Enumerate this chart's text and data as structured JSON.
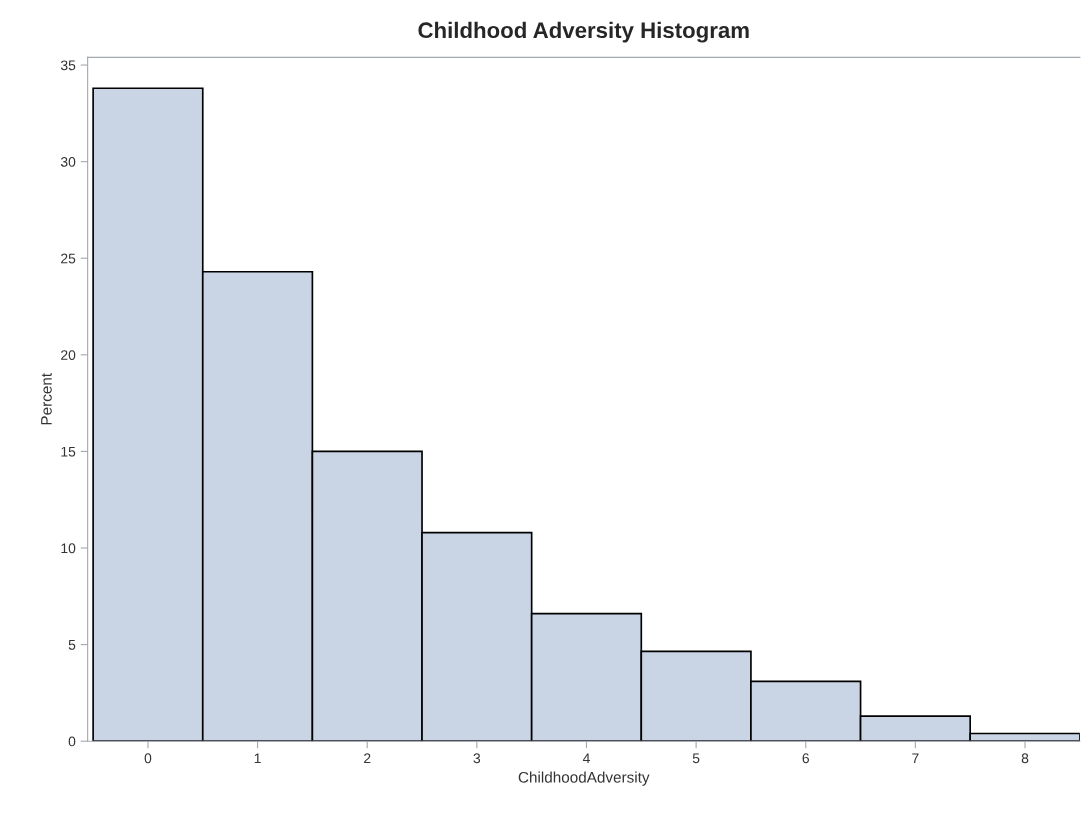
{
  "chart_data": {
    "type": "histogram",
    "title": "Childhood Adversity Histogram",
    "xlabel": "ChildhoodAdversity",
    "ylabel": "Percent",
    "bins": [
      -0.5,
      0.5,
      1.5,
      2.5,
      3.5,
      4.5,
      5.5,
      6.5,
      7.5,
      8.5
    ],
    "values": [
      33.8,
      24.3,
      15.0,
      10.8,
      6.6,
      4.65,
      3.1,
      1.3,
      0.4
    ],
    "color": "#c9d5e5",
    "xlim": [
      -0.55,
      8.5
    ],
    "xticks": [
      0,
      1,
      2,
      3,
      4,
      5,
      6,
      7,
      8
    ],
    "ylim": [
      0,
      35.4
    ],
    "yticks": [
      0,
      5,
      10,
      15,
      20,
      25,
      30,
      35
    ],
    "grid": false,
    "legend": false
  }
}
